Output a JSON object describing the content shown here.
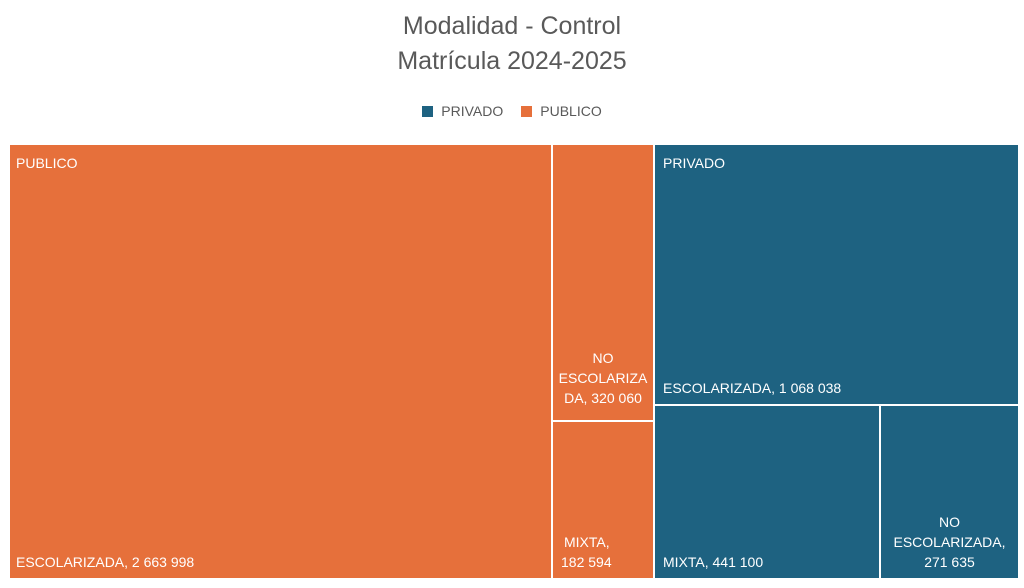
{
  "chart_data": {
    "type": "treemap",
    "title": "Modalidad - Control",
    "subtitle": "Matrícula 2024-2025",
    "legend": [
      {
        "name": "PRIVADO",
        "color": "#1E6281"
      },
      {
        "name": "PUBLICO",
        "color": "#E6703B"
      }
    ],
    "legend_position": "top",
    "groups": [
      {
        "name": "PUBLICO",
        "color": "#E6703B",
        "items": [
          {
            "label": "ESCOLARIZADA, 2 663 998",
            "category": "ESCOLARIZADA",
            "value": 2663998
          },
          {
            "label": "NO ESCOLARIZADA, 320 060",
            "category": "NO ESCOLARIZADA",
            "value": 320060
          },
          {
            "label": "MIXTA, 182 594",
            "category": "MIXTA",
            "value": 182594
          }
        ]
      },
      {
        "name": "PRIVADO",
        "color": "#1E6281",
        "items": [
          {
            "label": "ESCOLARIZADA, 1 068 038",
            "category": "ESCOLARIZADA",
            "value": 1068038
          },
          {
            "label": "MIXTA, 441 100",
            "category": "MIXTA",
            "value": 441100
          },
          {
            "label": "NO ESCOLARIZADA, 271 635",
            "category": "NO ESCOLARIZADA",
            "value": 271635
          }
        ]
      }
    ]
  },
  "labels": {
    "pub_esc": "ESCOLARIZADA, 2 663 998",
    "pub_noesc_1": "NO",
    "pub_noesc_2": "ESCOLARIZA",
    "pub_noesc_3": "DA, 320 060",
    "pub_mixta_1": "MIXTA,",
    "pub_mixta_2": "182 594",
    "priv_esc": "ESCOLARIZADA, 1 068 038",
    "priv_mixta": "MIXTA, 441 100",
    "priv_noesc_1": "NO",
    "priv_noesc_2": "ESCOLARIZADA,",
    "priv_noesc_3": "271 635"
  }
}
